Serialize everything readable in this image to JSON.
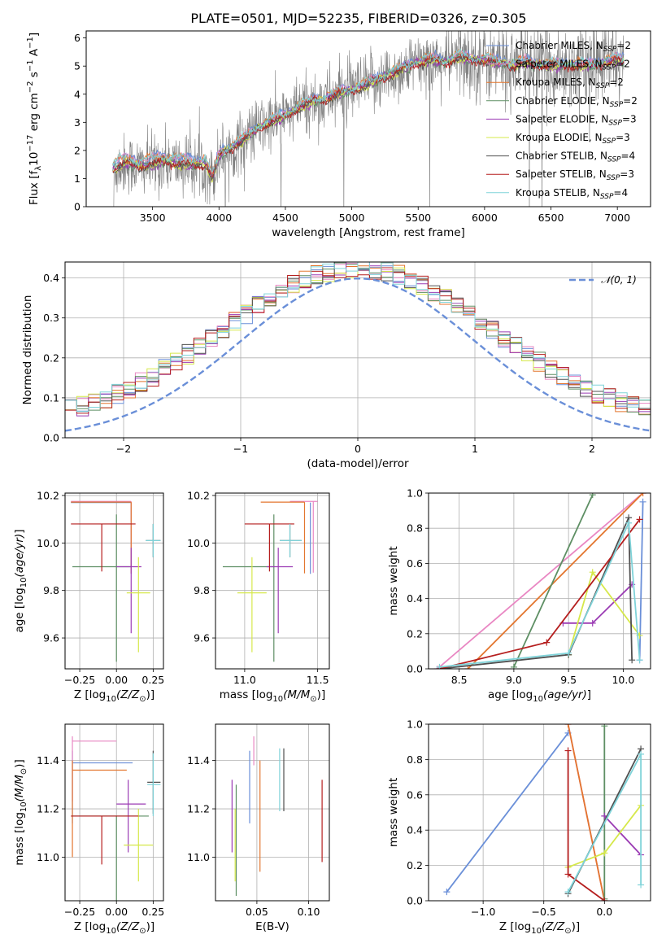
{
  "chart_data": [
    {
      "id": "spectrum",
      "type": "line",
      "title": "PLATE=0501, MJD=52235, FIBERID=0326, z=0.305",
      "xlabel": "wavelength [Angstrom, rest frame]",
      "ylabel": "Flux [f_λ10^-17 erg cm^-2 s^-1 A^-1]",
      "xlim": [
        3000,
        7250
      ],
      "ylim": [
        0,
        6.25
      ],
      "xticks": [
        3500,
        4000,
        4500,
        5000,
        5500,
        6000,
        6500,
        7000
      ],
      "yticks": [
        0,
        1,
        2,
        3,
        4,
        5,
        6
      ],
      "grid": false,
      "legend_position": "top-right",
      "data_series": {
        "name": "data",
        "color": "#808080"
      },
      "model_anchor_x": [
        3200,
        3300,
        3400,
        3500,
        3600,
        3700,
        3800,
        3900,
        3950,
        4000,
        4100,
        4200,
        4300,
        4400,
        4500,
        4600,
        4700,
        4800,
        4900,
        5000,
        5100,
        5200,
        5300,
        5400,
        5500,
        5600,
        5700,
        5800,
        5900,
        6000,
        6100,
        6200,
        6300,
        6400,
        6500,
        6600,
        6700,
        6800,
        6900,
        7000,
        7050
      ],
      "model_anchor_y": [
        1.3,
        1.55,
        1.4,
        1.5,
        1.6,
        1.5,
        1.45,
        1.5,
        1.0,
        1.8,
        2.1,
        2.4,
        2.8,
        3.0,
        3.2,
        3.5,
        3.7,
        3.8,
        4.0,
        4.1,
        4.3,
        4.5,
        4.7,
        4.9,
        5.1,
        5.2,
        5.1,
        5.3,
        5.2,
        5.2,
        5.1,
        5.0,
        5.1,
        5.0,
        5.0,
        5.0,
        5.0,
        5.0,
        5.1,
        5.2,
        5.1
      ],
      "series": [
        {
          "name": "Chabrier MILES, N_SSP=2",
          "color": "#6a8fd8",
          "label_main": "Chabrier MILES, N",
          "label_sub": "SSP",
          "label_tail": "=2"
        },
        {
          "name": "Salpeter MILES, N_SSP=2",
          "color": "#e987c3",
          "label_main": "Salpeter MILES, N",
          "label_sub": "SSP",
          "label_tail": "=2"
        },
        {
          "name": "Kroupa MILES, N_SSP=2",
          "color": "#e3762f",
          "label_main": "Kroupa MILES, N",
          "label_sub": "SSP",
          "label_tail": "=2"
        },
        {
          "name": "Chabrier ELODIE, N_SSP=2",
          "color": "#5e8f64",
          "label_main": "Chabrier ELODIE, N",
          "label_sub": "SSP",
          "label_tail": "=2"
        },
        {
          "name": "Salpeter ELODIE, N_SSP=3",
          "color": "#9b3cb4",
          "label_main": "Salpeter ELODIE, N",
          "label_sub": "SSP",
          "label_tail": "=3"
        },
        {
          "name": "Kroupa ELODIE, N_SSP=3",
          "color": "#d6e84a",
          "label_main": "Kroupa ELODIE, N",
          "label_sub": "SSP",
          "label_tail": "=3"
        },
        {
          "name": "Chabrier STELIB, N_SSP=4",
          "color": "#505050",
          "label_main": "Chabrier STELIB, N",
          "label_sub": "SSP",
          "label_tail": "=4"
        },
        {
          "name": "Salpeter STELIB, N_SSP=3",
          "color": "#b51e1e",
          "label_main": "Salpeter STELIB, N",
          "label_sub": "SSP",
          "label_tail": "=3"
        },
        {
          "name": "Kroupa STELIB, N_SSP=4",
          "color": "#7fd3d9",
          "label_main": "Kroupa STELIB, N",
          "label_sub": "SSP",
          "label_tail": "=4"
        }
      ]
    },
    {
      "id": "residuals",
      "type": "bar",
      "xlabel": "(data-model)/error",
      "ylabel": "Normed distribution",
      "xlim": [
        -2.5,
        2.5
      ],
      "ylim": [
        0,
        0.44
      ],
      "xticks": [
        -2,
        -1,
        0,
        1,
        2
      ],
      "yticks": [
        0.0,
        0.1,
        0.2,
        0.3,
        0.4
      ],
      "grid": true,
      "legend_position": "top-right",
      "reference_curve": {
        "name": "N(0,1)",
        "label": "𝒩(0, 1)",
        "color": "#6a8fd8",
        "style": "dashed"
      },
      "bin_width": 0.1
    },
    {
      "id": "age_vs_Z",
      "type": "scatter",
      "xlabel": "Z [log10(Z/Z_sun)]",
      "ylabel": "age [log10(age/yr)]",
      "xlim": [
        -0.35,
        0.32
      ],
      "ylim": [
        9.47,
        10.21
      ],
      "xticks": [
        -0.25,
        0.0,
        0.25
      ],
      "xticklabels": [
        "−0.25",
        "0.00",
        "0.25"
      ],
      "yticks": [
        9.6,
        9.8,
        10.0,
        10.2
      ],
      "grid": true,
      "points": [
        {
          "model": "Chabrier MILES",
          "x": 0.1,
          "y": 10.17,
          "xerr": [
            0.41,
            0.0
          ],
          "yerr": [
            0.3,
            0.0
          ]
        },
        {
          "model": "Salpeter MILES",
          "x": 0.1,
          "y": 10.175,
          "xerr": [
            0.41,
            0.0
          ],
          "yerr": [
            0.3,
            0.0
          ]
        },
        {
          "model": "Kroupa MILES",
          "x": 0.1,
          "y": 10.172,
          "xerr": [
            0.41,
            0.0
          ],
          "yerr": [
            0.3,
            0.0
          ]
        },
        {
          "model": "Chabrier ELODIE",
          "x": 0.0,
          "y": 9.9,
          "xerr": [
            0.3,
            0.1
          ],
          "yerr": [
            0.4,
            0.22
          ]
        },
        {
          "model": "Salpeter ELODIE",
          "x": 0.1,
          "y": 9.9,
          "xerr": [
            0.1,
            0.07
          ],
          "yerr": [
            0.28,
            0.08
          ]
        },
        {
          "model": "Kroupa ELODIE",
          "x": 0.15,
          "y": 9.79,
          "xerr": [
            0.08,
            0.08
          ],
          "yerr": [
            0.25,
            0.15
          ]
        },
        {
          "model": "Chabrier STELIB",
          "x": 0.25,
          "y": 10.01,
          "xerr": [
            0.05,
            0.05
          ],
          "yerr": [
            0.07,
            0.07
          ]
        },
        {
          "model": "Salpeter STELIB",
          "x": -0.1,
          "y": 10.08,
          "xerr": [
            0.21,
            0.23
          ],
          "yerr": [
            0.2,
            0.0
          ]
        },
        {
          "model": "Kroupa STELIB",
          "x": 0.25,
          "y": 10.01,
          "xerr": [
            0.05,
            0.05
          ],
          "yerr": [
            0.07,
            0.07
          ]
        }
      ]
    },
    {
      "id": "age_vs_mass",
      "type": "scatter",
      "xlabel": "mass [log10(M/M_sun)]",
      "ylabel": "",
      "xlim": [
        10.8,
        11.58
      ],
      "ylim": [
        9.47,
        10.21
      ],
      "xticks": [
        11.0,
        11.5
      ],
      "xticklabels": [
        "11.0",
        "11.5"
      ],
      "yticks": [
        9.6,
        9.8,
        10.0,
        10.2
      ],
      "grid": true,
      "points": [
        {
          "model": "Chabrier MILES",
          "x": 11.45,
          "y": 10.17,
          "xerr": [
            0.0,
            0.0
          ],
          "yerr": [
            0.3,
            0.0
          ]
        },
        {
          "model": "Salpeter MILES",
          "x": 11.47,
          "y": 10.175,
          "xerr": [
            0.16,
            0.03
          ],
          "yerr": [
            0.3,
            0.0
          ]
        },
        {
          "model": "Kroupa MILES",
          "x": 11.41,
          "y": 10.172,
          "xerr": [
            0.3,
            0.0
          ],
          "yerr": [
            0.3,
            0.0
          ]
        },
        {
          "model": "Chabrier ELODIE",
          "x": 11.2,
          "y": 9.9,
          "xerr": [
            0.35,
            0.0
          ],
          "yerr": [
            0.4,
            0.22
          ]
        },
        {
          "model": "Salpeter ELODIE",
          "x": 11.23,
          "y": 9.9,
          "xerr": [
            0.08,
            0.1
          ],
          "yerr": [
            0.28,
            0.08
          ]
        },
        {
          "model": "Kroupa ELODIE",
          "x": 11.05,
          "y": 9.79,
          "xerr": [
            0.1,
            0.1
          ],
          "yerr": [
            0.25,
            0.15
          ]
        },
        {
          "model": "Chabrier STELIB",
          "x": 11.31,
          "y": 10.01,
          "xerr": [
            0.07,
            0.08
          ],
          "yerr": [
            0.07,
            0.07
          ]
        },
        {
          "model": "Salpeter STELIB",
          "x": 11.17,
          "y": 10.08,
          "xerr": [
            0.17,
            0.17
          ],
          "yerr": [
            0.2,
            0.0
          ]
        },
        {
          "model": "Kroupa STELIB",
          "x": 11.31,
          "y": 10.01,
          "xerr": [
            0.07,
            0.08
          ],
          "yerr": [
            0.07,
            0.07
          ]
        }
      ]
    },
    {
      "id": "massweight_vs_age",
      "type": "line",
      "xlabel": "age [log10(age/yr)]",
      "ylabel": "mass weight",
      "xlim": [
        8.22,
        10.25
      ],
      "ylim": [
        0,
        1.0
      ],
      "xticks": [
        8.5,
        9.0,
        9.5,
        10.0
      ],
      "xticklabels": [
        "8.5",
        "9.0",
        "9.5",
        "10.0"
      ],
      "yticks": [
        0.0,
        0.2,
        0.4,
        0.6,
        0.8,
        1.0
      ],
      "grid": true,
      "lines": [
        {
          "model": "Chabrier MILES",
          "x": [
            10.15,
            10.18
          ],
          "y": [
            0.05,
            0.95
          ]
        },
        {
          "model": "Salpeter MILES",
          "x": [
            8.3,
            10.18
          ],
          "y": [
            0.0,
            1.0
          ]
        },
        {
          "model": "Kroupa MILES",
          "x": [
            8.58,
            10.18
          ],
          "y": [
            0.0,
            1.0
          ]
        },
        {
          "model": "Chabrier ELODIE",
          "x": [
            9.0,
            9.72
          ],
          "y": [
            0.01,
            0.99
          ]
        },
        {
          "model": "Salpeter ELODIE",
          "x": [
            9.45,
            9.72,
            10.08
          ],
          "y": [
            0.26,
            0.26,
            0.48
          ]
        },
        {
          "model": "Kroupa ELODIE",
          "x": [
            9.5,
            9.72,
            10.15
          ],
          "y": [
            0.08,
            0.55,
            0.19
          ]
        },
        {
          "model": "Chabrier STELIB",
          "x": [
            8.32,
            9.5,
            10.05,
            10.08
          ],
          "y": [
            0.0,
            0.08,
            0.86,
            0.05
          ]
        },
        {
          "model": "Salpeter STELIB",
          "x": [
            8.32,
            9.3,
            10.15
          ],
          "y": [
            0.0,
            0.15,
            0.85
          ]
        },
        {
          "model": "Kroupa STELIB",
          "x": [
            8.32,
            9.5,
            10.05,
            10.15
          ],
          "y": [
            0.01,
            0.09,
            0.83,
            0.05
          ]
        }
      ]
    },
    {
      "id": "mass_vs_Z",
      "type": "scatter",
      "xlabel": "Z [log10(Z/Z_sun)]",
      "ylabel": "mass [log10(M/M_sun)]",
      "xlim": [
        -0.35,
        0.32
      ],
      "ylim": [
        10.82,
        11.55
      ],
      "xticks": [
        -0.25,
        0.0,
        0.25
      ],
      "xticklabels": [
        "−0.25",
        "0.00",
        "0.25"
      ],
      "yticks": [
        11.0,
        11.2,
        11.4
      ],
      "grid": true,
      "points": [
        {
          "model": "Chabrier MILES",
          "x": -0.3,
          "y": 11.39,
          "xerr": [
            0.0,
            0.41
          ],
          "yerr": [
            0.25,
            0.05
          ]
        },
        {
          "model": "Salpeter MILES",
          "x": -0.3,
          "y": 11.48,
          "xerr": [
            0.0,
            0.3
          ],
          "yerr": [
            0.25,
            0.02
          ]
        },
        {
          "model": "Kroupa MILES",
          "x": -0.3,
          "y": 11.36,
          "xerr": [
            0.0,
            0.37
          ],
          "yerr": [
            0.36,
            0.04
          ]
        },
        {
          "model": "Chabrier ELODIE",
          "x": 0.0,
          "y": 11.17,
          "xerr": [
            0.3,
            0.22
          ],
          "yerr": [
            0.42,
            0.0
          ]
        },
        {
          "model": "Salpeter ELODIE",
          "x": 0.08,
          "y": 11.22,
          "xerr": [
            0.08,
            0.12
          ],
          "yerr": [
            0.2,
            0.1
          ]
        },
        {
          "model": "Kroupa ELODIE",
          "x": 0.15,
          "y": 11.05,
          "xerr": [
            0.1,
            0.1
          ],
          "yerr": [
            0.15,
            0.15
          ]
        },
        {
          "model": "Chabrier STELIB",
          "x": 0.25,
          "y": 11.31,
          "xerr": [
            0.04,
            0.05
          ],
          "yerr": [
            0.13,
            0.13
          ]
        },
        {
          "model": "Salpeter STELIB",
          "x": -0.1,
          "y": 11.17,
          "xerr": [
            0.21,
            0.25
          ],
          "yerr": [
            0.2,
            0.0
          ]
        },
        {
          "model": "Kroupa STELIB",
          "x": 0.25,
          "y": 11.3,
          "xerr": [
            0.04,
            0.05
          ],
          "yerr": [
            0.13,
            0.13
          ]
        }
      ]
    },
    {
      "id": "mass_vs_ebv",
      "type": "scatter",
      "xlabel": "E(B-V)",
      "ylabel": "",
      "xlim": [
        0.01,
        0.12
      ],
      "ylim": [
        10.82,
        11.55
      ],
      "xticks": [
        0.05,
        0.1
      ],
      "xticklabels": [
        "0.05",
        "0.10"
      ],
      "yticks": [
        11.0,
        11.2,
        11.4
      ],
      "grid": true,
      "points": [
        {
          "model": "Chabrier MILES",
          "x": 0.043,
          "y": 11.29,
          "xerr": [
            0.0,
            0.0
          ],
          "yerr": [
            0.15,
            0.15
          ]
        },
        {
          "model": "Salpeter MILES",
          "x": 0.047,
          "y": 11.44,
          "xerr": [
            0.0,
            0.0
          ],
          "yerr": [
            0.06,
            0.06
          ]
        },
        {
          "model": "Kroupa MILES",
          "x": 0.053,
          "y": 11.17,
          "xerr": [
            0.0,
            0.0
          ],
          "yerr": [
            0.23,
            0.23
          ]
        },
        {
          "model": "Chabrier ELODIE",
          "x": 0.03,
          "y": 11.07,
          "xerr": [
            0.0,
            0.0
          ],
          "yerr": [
            0.23,
            0.23
          ]
        },
        {
          "model": "Salpeter ELODIE",
          "x": 0.026,
          "y": 11.17,
          "xerr": [
            0.0,
            0.0
          ],
          "yerr": [
            0.15,
            0.15
          ]
        },
        {
          "model": "Kroupa ELODIE",
          "x": 0.029,
          "y": 11.05,
          "xerr": [
            0.0,
            0.0
          ],
          "yerr": [
            0.15,
            0.15
          ]
        },
        {
          "model": "Chabrier STELIB",
          "x": 0.076,
          "y": 11.32,
          "xerr": [
            0.0,
            0.0
          ],
          "yerr": [
            0.13,
            0.13
          ]
        },
        {
          "model": "Salpeter STELIB",
          "x": 0.113,
          "y": 11.15,
          "xerr": [
            0.0,
            0.0
          ],
          "yerr": [
            0.17,
            0.17
          ]
        },
        {
          "model": "Kroupa STELIB",
          "x": 0.072,
          "y": 11.32,
          "xerr": [
            0.0,
            0.0
          ],
          "yerr": [
            0.13,
            0.13
          ]
        }
      ]
    },
    {
      "id": "massweight_vs_Z",
      "type": "line",
      "xlabel": "Z [log10(Z/Z_sun)]",
      "ylabel": "mass weight",
      "xlim": [
        -1.45,
        0.38
      ],
      "ylim": [
        0,
        1.0
      ],
      "xticks": [
        -1.0,
        -0.5,
        0.0
      ],
      "xticklabels": [
        "−1.0",
        "−0.5",
        "0.0"
      ],
      "yticks": [
        0.0,
        0.2,
        0.4,
        0.6,
        0.8,
        1.0
      ],
      "grid": true,
      "lines": [
        {
          "model": "Chabrier MILES",
          "x": [
            -1.3,
            -0.3
          ],
          "y": [
            0.05,
            0.95
          ]
        },
        {
          "model": "Salpeter MILES",
          "x": [
            -0.3,
            0.0
          ],
          "y": [
            1.0,
            0.0
          ]
        },
        {
          "model": "Kroupa MILES",
          "x": [
            -0.3,
            0.0
          ],
          "y": [
            1.0,
            0.0
          ]
        },
        {
          "model": "Chabrier ELODIE",
          "x": [
            0.0,
            0.0
          ],
          "y": [
            0.99,
            0.01
          ]
        },
        {
          "model": "Salpeter ELODIE",
          "x": [
            0.0,
            0.3
          ],
          "y": [
            0.48,
            0.26
          ]
        },
        {
          "model": "Kroupa ELODIE",
          "x": [
            -0.3,
            0.0,
            0.3
          ],
          "y": [
            0.19,
            0.27,
            0.54
          ]
        },
        {
          "model": "Chabrier STELIB",
          "x": [
            -0.3,
            0.3
          ],
          "y": [
            0.04,
            0.86
          ]
        },
        {
          "model": "Salpeter STELIB",
          "x": [
            -0.3,
            -0.3,
            0.0
          ],
          "y": [
            0.85,
            0.15,
            0.0
          ]
        },
        {
          "model": "Kroupa STELIB",
          "x": [
            -0.3,
            0.3,
            0.3
          ],
          "y": [
            0.05,
            0.83,
            0.09
          ]
        }
      ]
    }
  ]
}
